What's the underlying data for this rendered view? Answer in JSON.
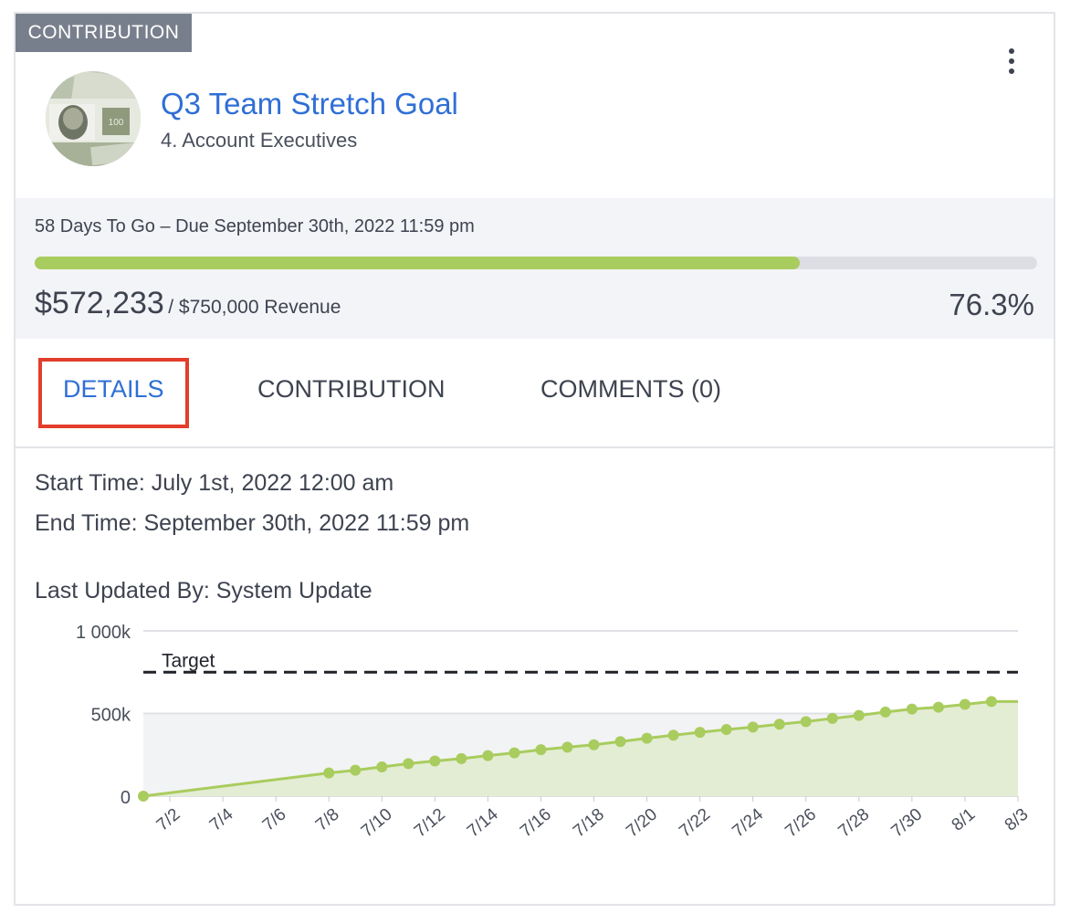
{
  "card": {
    "type_badge": "CONTRIBUTION",
    "title": "Q3 Team Stretch Goal",
    "subtitle": "4. Account Executives",
    "menu_icon": "more-vertical-icon",
    "avatar_icon": "money-avatar"
  },
  "progress": {
    "due_text": "58 Days To Go – Due September 30th, 2022 11:59 pm",
    "current": "$572,233",
    "target_text": "/ $750,000 Revenue",
    "percent_text": "76.3%",
    "fraction": 0.763
  },
  "tabs": [
    {
      "label": "DETAILS",
      "active": true
    },
    {
      "label": "CONTRIBUTION",
      "active": false
    },
    {
      "label": "COMMENTS (0)",
      "active": false
    }
  ],
  "details": {
    "start": "Start Time: July 1st, 2022 12:00 am",
    "end": "End Time: September 30th, 2022 11:59 pm",
    "updated": "Last Updated By: System Update"
  },
  "colors": {
    "accent": "#2f6fd6",
    "progress": "#a9cc5e",
    "highlight": "#e33d2b"
  },
  "chart_data": {
    "type": "area",
    "title": "",
    "xlabel": "",
    "ylabel": "",
    "ylim": [
      0,
      1000000
    ],
    "y_tick_labels": [
      "0",
      "500k",
      "1 000k"
    ],
    "y_ticks": [
      0,
      500000,
      1000000
    ],
    "x_tick_labels": [
      "7/2",
      "7/4",
      "7/6",
      "7/8",
      "7/10",
      "7/12",
      "7/14",
      "7/16",
      "7/18",
      "7/20",
      "7/22",
      "7/24",
      "7/26",
      "7/28",
      "7/30",
      "8/1",
      "8/3"
    ],
    "x_range": [
      "7/1",
      "8/3"
    ],
    "target": {
      "label": "Target",
      "value": 750000
    },
    "series": [
      {
        "dates": [
          "7/1",
          "7/8",
          "7/9",
          "7/10",
          "7/11",
          "7/12",
          "7/13",
          "7/14",
          "7/15",
          "7/16",
          "7/17",
          "7/18",
          "7/19",
          "7/20",
          "7/21",
          "7/22",
          "7/23",
          "7/24",
          "7/25",
          "7/26",
          "7/27",
          "7/28",
          "7/29",
          "7/30",
          "7/31",
          "8/1",
          "8/2",
          "8/3"
        ],
        "values": [
          0,
          140000,
          157000,
          177000,
          197000,
          213000,
          227000,
          245000,
          262000,
          281000,
          296000,
          311000,
          330000,
          350000,
          369000,
          386000,
          403000,
          418000,
          435000,
          451000,
          470000,
          488000,
          509000,
          527000,
          538000,
          555000,
          572233,
          572233
        ]
      }
    ],
    "grid": true,
    "legend": "none"
  }
}
